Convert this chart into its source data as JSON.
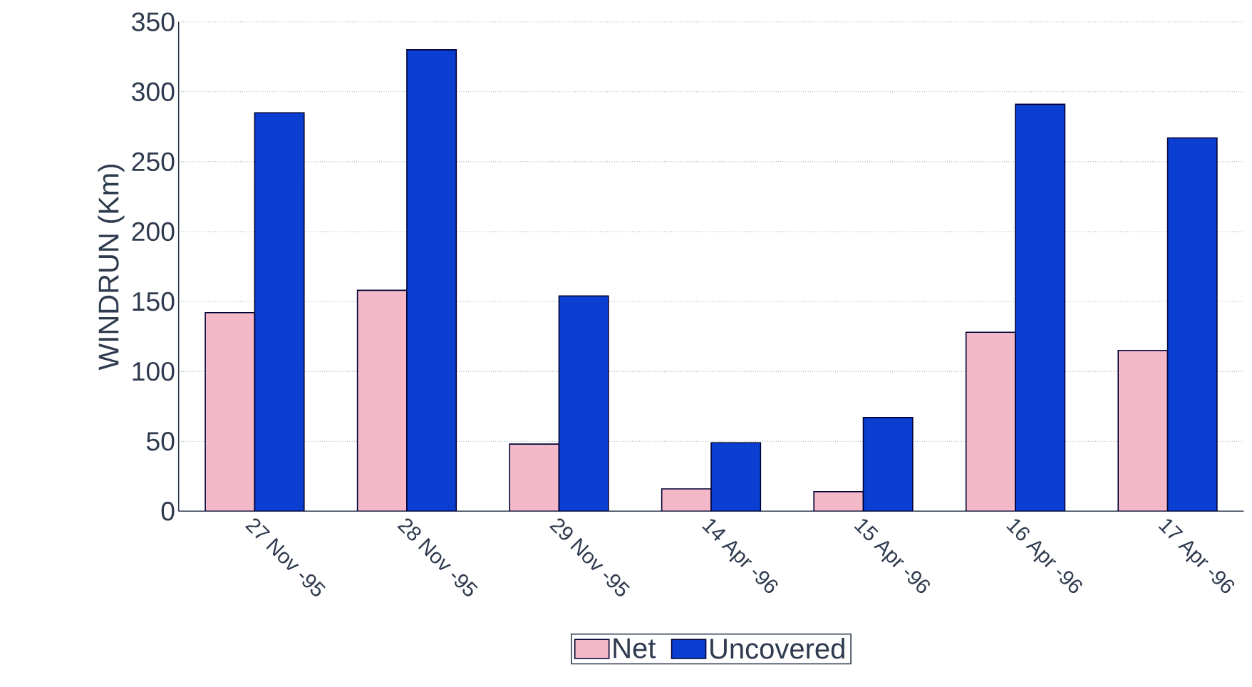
{
  "chart_data": {
    "type": "bar",
    "ylabel": "WINDRUN (Km)",
    "categories": [
      "27 Nov -95",
      "28 Nov -95",
      "29 Nov -95",
      "14 Apr -96",
      "15 Apr -96",
      "16 Apr -96",
      "17 Apr -96"
    ],
    "series": [
      {
        "name": "Net",
        "color": "#f4b9c9",
        "values": [
          142,
          158,
          48,
          16,
          14,
          128,
          115
        ]
      },
      {
        "name": "Uncovered",
        "color": "#0b3fd1",
        "values": [
          285,
          330,
          154,
          49,
          67,
          291,
          267
        ]
      }
    ],
    "ylim": [
      0,
      350
    ],
    "yticks": [
      0,
      50,
      100,
      150,
      200,
      250,
      300,
      350
    ],
    "grid": "y",
    "legend": "bottom"
  }
}
